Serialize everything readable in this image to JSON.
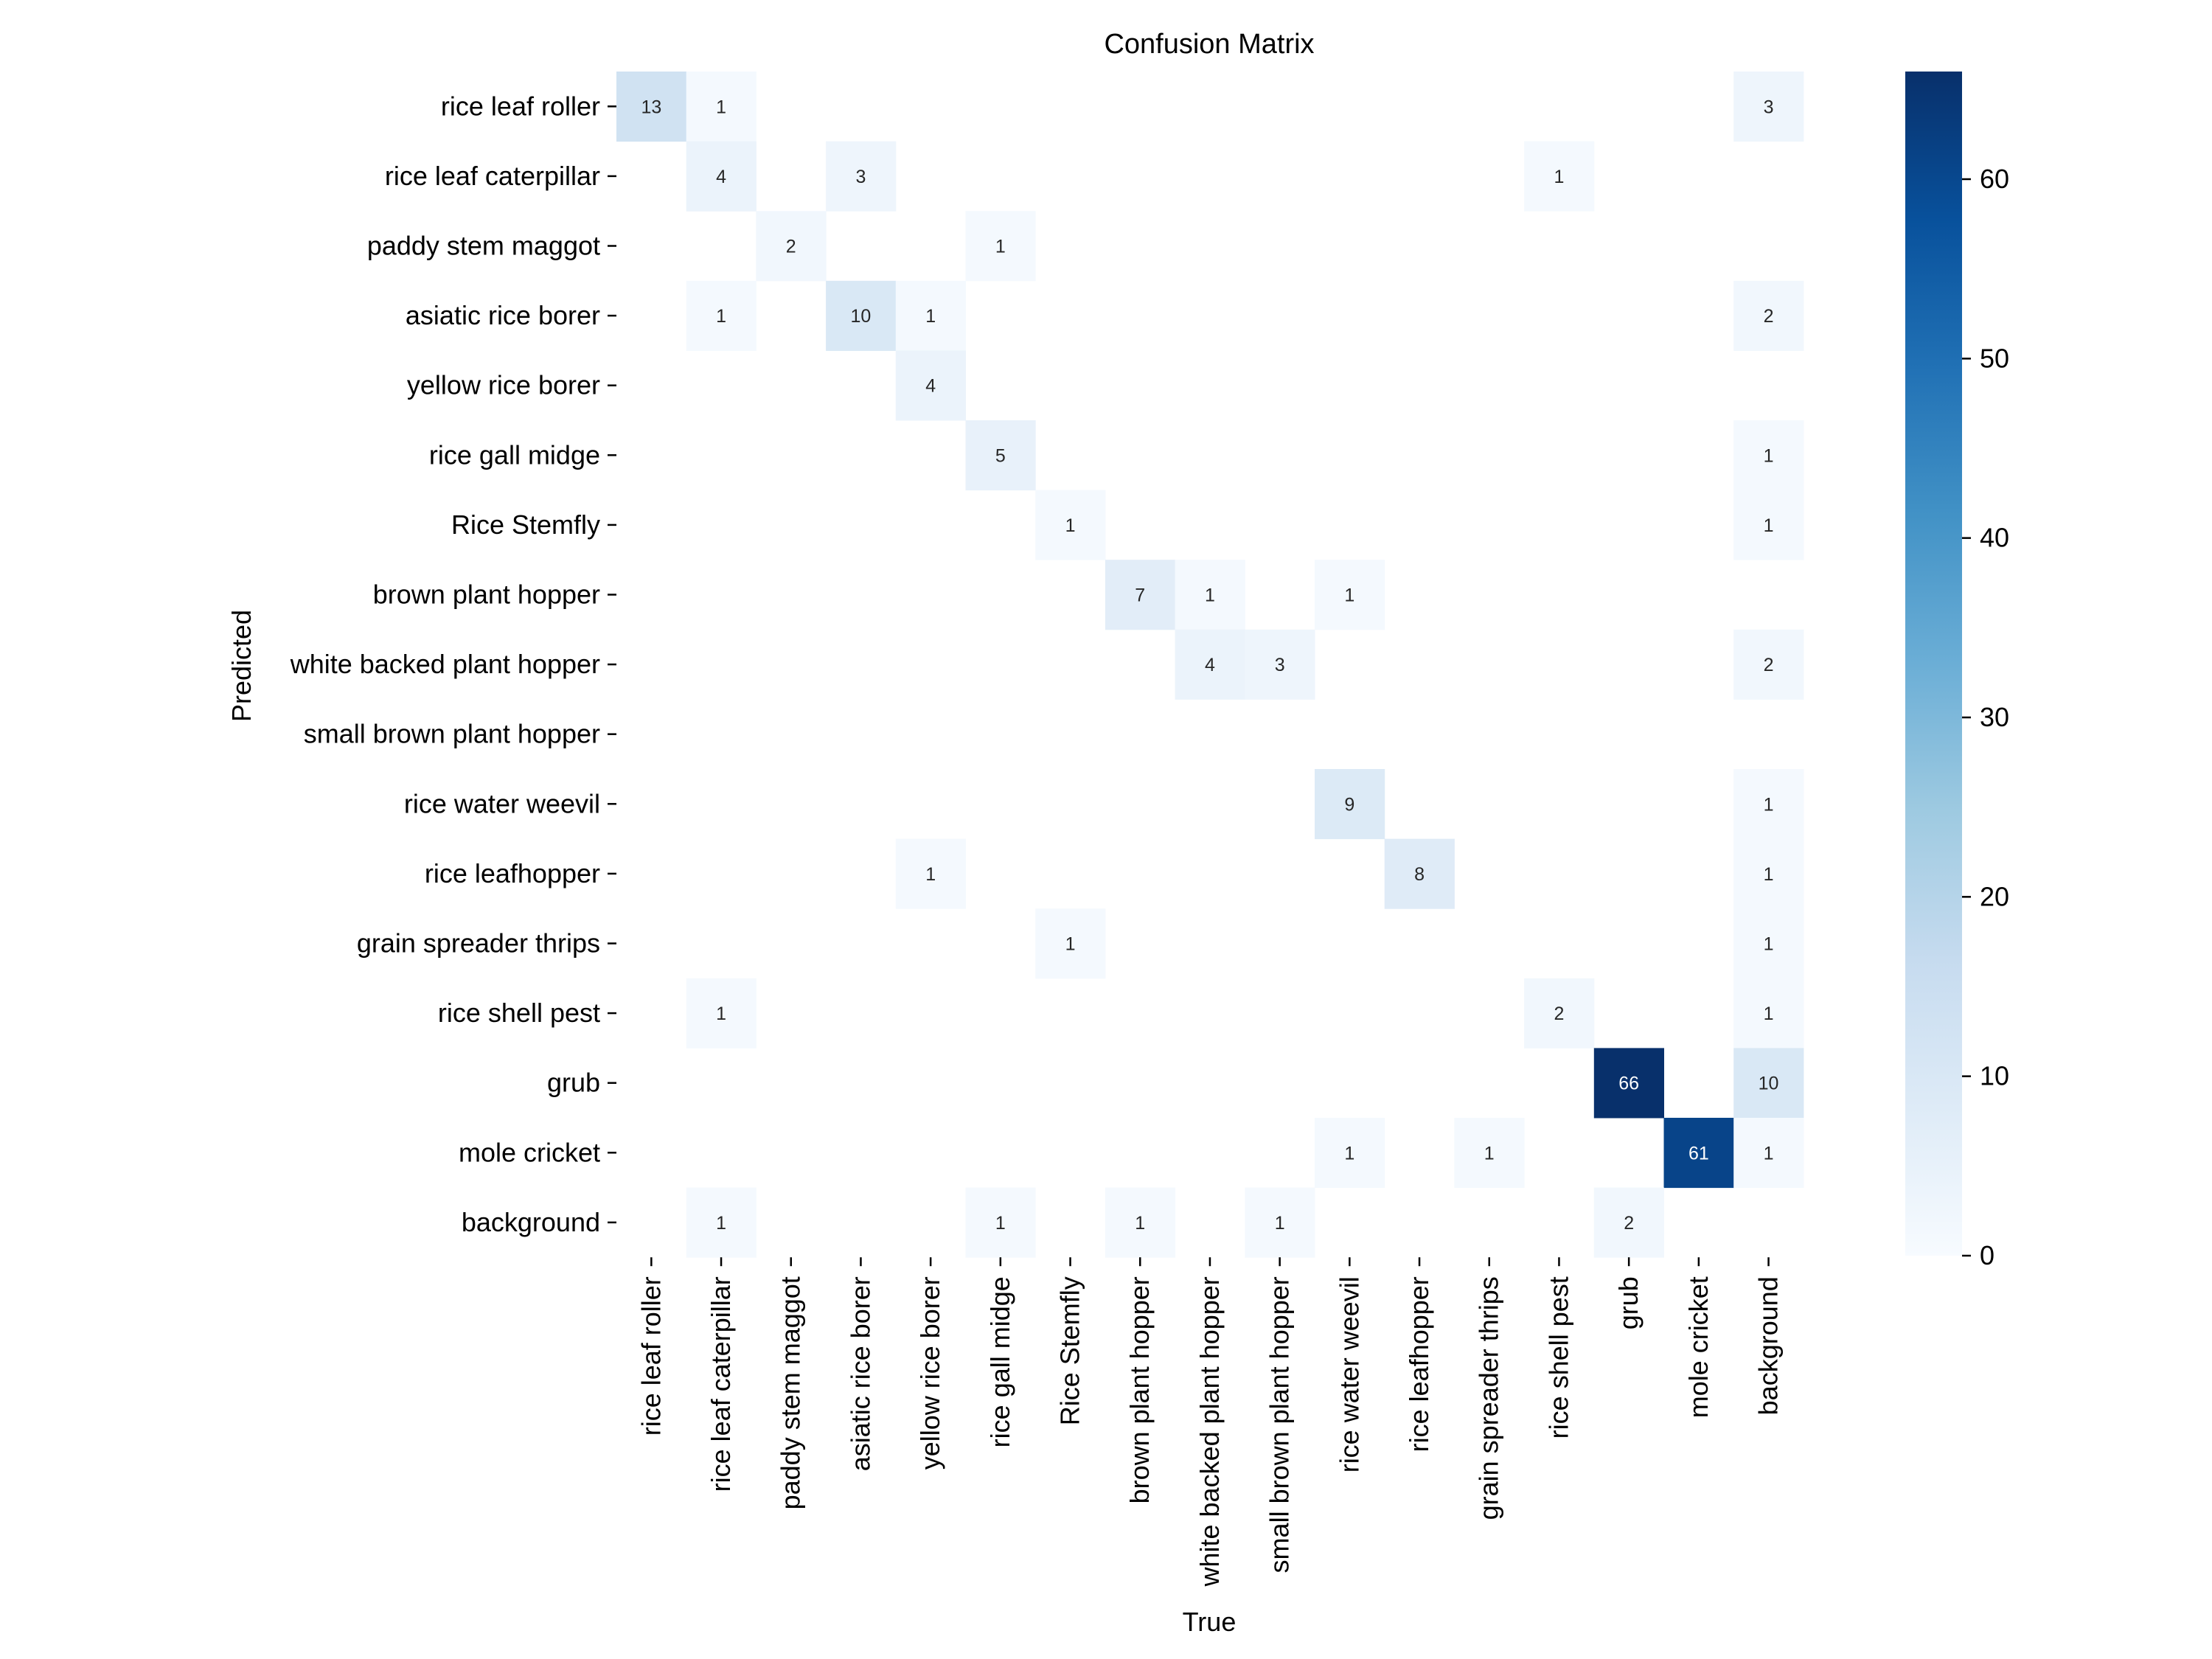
{
  "chart_data": {
    "type": "heatmap",
    "title": "Confusion Matrix",
    "xlabel": "True",
    "ylabel": "Predicted",
    "x_categories": [
      "rice leaf roller",
      "rice leaf caterpillar",
      "paddy stem maggot",
      "asiatic rice borer",
      "yellow rice borer",
      "rice gall midge",
      "Rice Stemfly",
      "brown plant hopper",
      "white backed plant hopper",
      "small brown plant hopper",
      "rice water weevil",
      "rice leafhopper",
      "grain spreader thrips",
      "rice shell pest",
      "grub",
      "mole cricket",
      "background"
    ],
    "y_categories": [
      "rice leaf roller",
      "rice leaf caterpillar",
      "paddy stem maggot",
      "asiatic rice borer",
      "yellow rice borer",
      "rice gall midge",
      "Rice Stemfly",
      "brown plant hopper",
      "white backed plant hopper",
      "small brown plant hopper",
      "rice water weevil",
      "rice leafhopper",
      "grain spreader thrips",
      "rice shell pest",
      "grub",
      "mole cricket",
      "background"
    ],
    "matrix": [
      [
        13,
        1,
        0,
        0,
        0,
        0,
        0,
        0,
        0,
        0,
        0,
        0,
        0,
        0,
        0,
        0,
        3
      ],
      [
        0,
        4,
        0,
        3,
        0,
        0,
        0,
        0,
        0,
        0,
        0,
        0,
        0,
        1,
        0,
        0,
        0
      ],
      [
        0,
        0,
        2,
        0,
        0,
        1,
        0,
        0,
        0,
        0,
        0,
        0,
        0,
        0,
        0,
        0,
        0
      ],
      [
        0,
        1,
        0,
        10,
        1,
        0,
        0,
        0,
        0,
        0,
        0,
        0,
        0,
        0,
        0,
        0,
        2
      ],
      [
        0,
        0,
        0,
        0,
        4,
        0,
        0,
        0,
        0,
        0,
        0,
        0,
        0,
        0,
        0,
        0,
        0
      ],
      [
        0,
        0,
        0,
        0,
        0,
        5,
        0,
        0,
        0,
        0,
        0,
        0,
        0,
        0,
        0,
        0,
        1
      ],
      [
        0,
        0,
        0,
        0,
        0,
        0,
        1,
        0,
        0,
        0,
        0,
        0,
        0,
        0,
        0,
        0,
        1
      ],
      [
        0,
        0,
        0,
        0,
        0,
        0,
        0,
        7,
        1,
        0,
        1,
        0,
        0,
        0,
        0,
        0,
        0
      ],
      [
        0,
        0,
        0,
        0,
        0,
        0,
        0,
        0,
        4,
        3,
        0,
        0,
        0,
        0,
        0,
        0,
        2
      ],
      [
        0,
        0,
        0,
        0,
        0,
        0,
        0,
        0,
        0,
        0,
        0,
        0,
        0,
        0,
        0,
        0,
        0
      ],
      [
        0,
        0,
        0,
        0,
        0,
        0,
        0,
        0,
        0,
        0,
        9,
        0,
        0,
        0,
        0,
        0,
        1
      ],
      [
        0,
        0,
        0,
        0,
        1,
        0,
        0,
        0,
        0,
        0,
        0,
        8,
        0,
        0,
        0,
        0,
        1
      ],
      [
        0,
        0,
        0,
        0,
        0,
        0,
        1,
        0,
        0,
        0,
        0,
        0,
        0,
        0,
        0,
        0,
        1
      ],
      [
        0,
        1,
        0,
        0,
        0,
        0,
        0,
        0,
        0,
        0,
        0,
        0,
        0,
        2,
        0,
        0,
        1
      ],
      [
        0,
        0,
        0,
        0,
        0,
        0,
        0,
        0,
        0,
        0,
        0,
        0,
        0,
        0,
        66,
        0,
        10
      ],
      [
        0,
        0,
        0,
        0,
        0,
        0,
        0,
        0,
        0,
        0,
        1,
        0,
        1,
        0,
        0,
        61,
        1
      ],
      [
        0,
        1,
        0,
        0,
        0,
        1,
        0,
        1,
        0,
        1,
        0,
        0,
        0,
        0,
        2,
        0,
        0
      ]
    ],
    "hide_zero_cells": true,
    "colormap": "Blues",
    "colormap_stops": [
      "#f7fbff",
      "#deebf7",
      "#c6dbef",
      "#9ecae1",
      "#6baed6",
      "#4292c6",
      "#2171b5",
      "#08519c",
      "#08306b"
    ],
    "value_range": [
      0,
      66
    ],
    "colorbar_ticks": [
      0,
      10,
      20,
      30,
      40,
      50,
      60
    ]
  }
}
